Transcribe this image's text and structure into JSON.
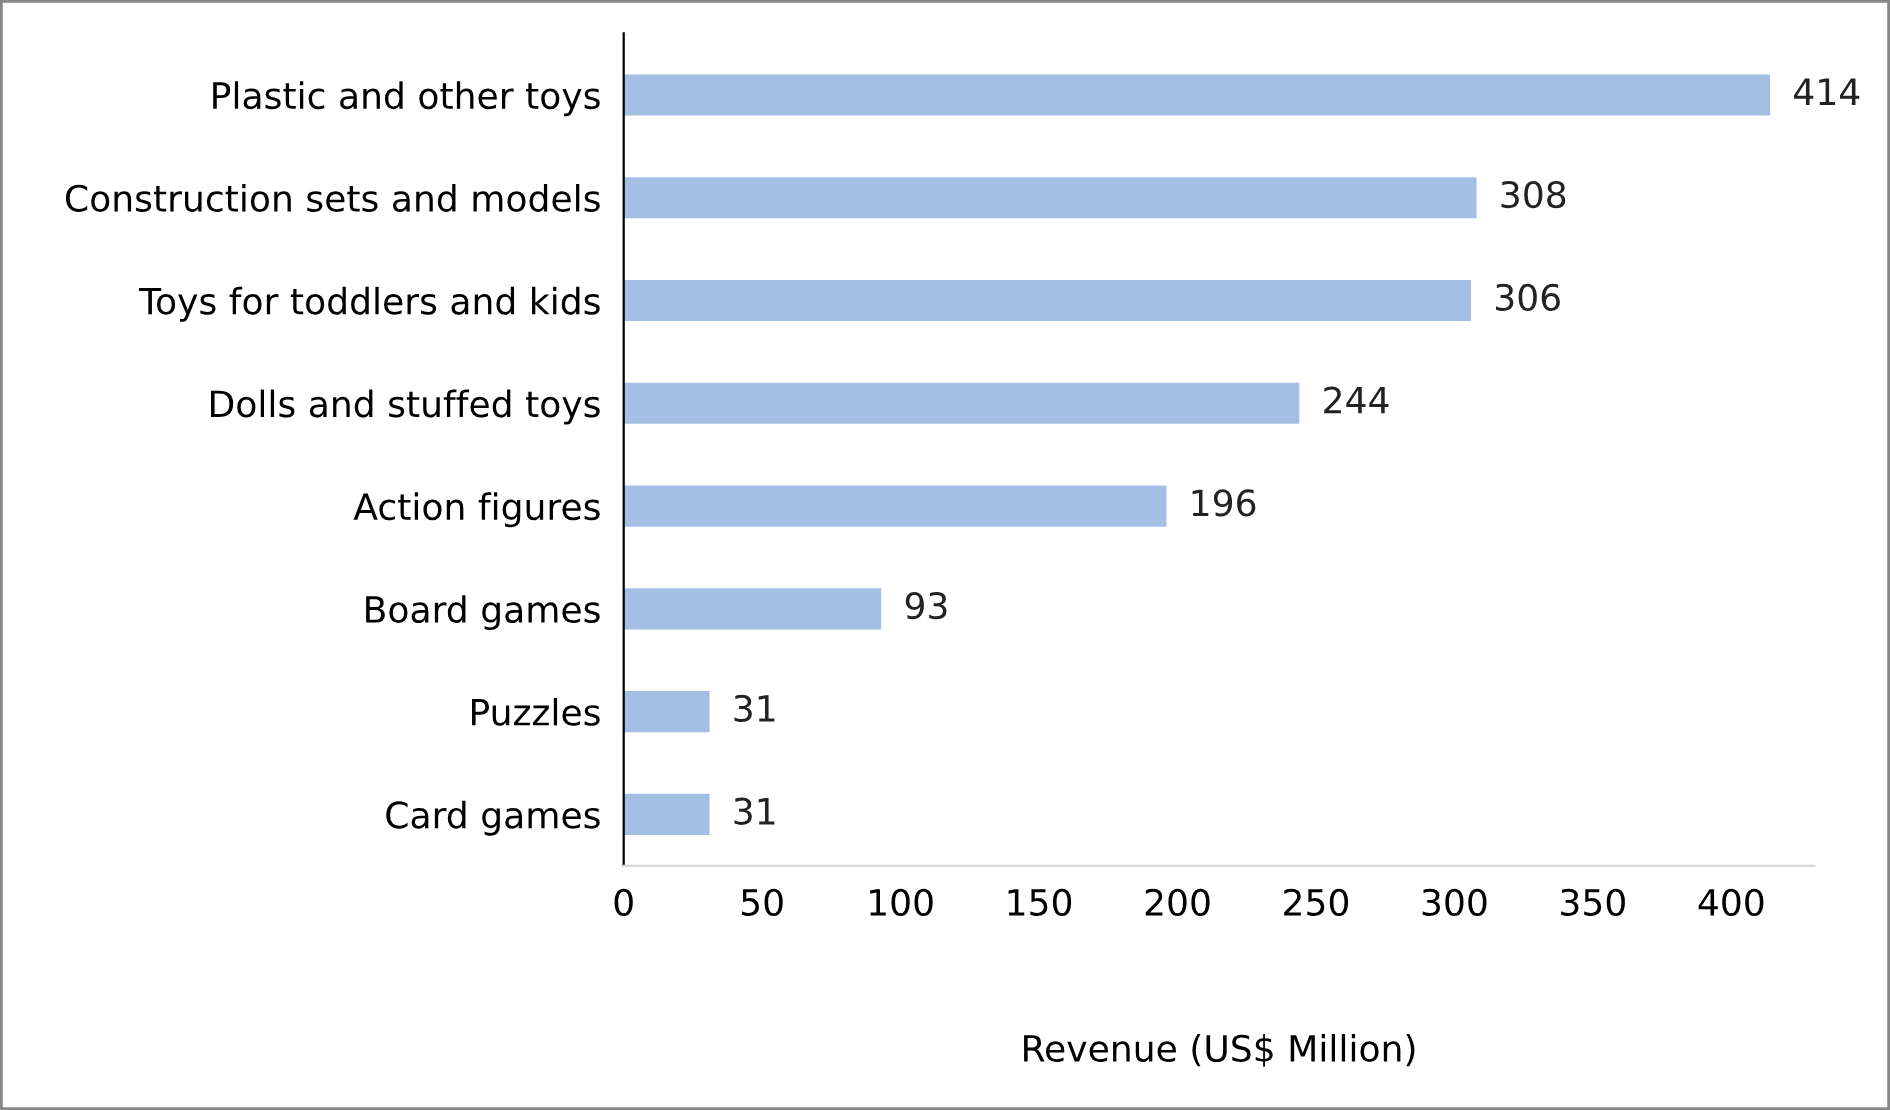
{
  "chart_data": {
    "type": "bar",
    "orientation": "horizontal",
    "xlabel": "Revenue (US$ Million)",
    "categories": [
      "Plastic and other toys",
      "Construction sets and models",
      "Toys for toddlers and kids",
      "Dolls and stuffed toys",
      "Action figures",
      "Board games",
      "Puzzles",
      "Card games"
    ],
    "values": [
      414,
      308,
      306,
      244,
      196,
      93,
      31,
      31
    ],
    "color": "#a3bfe3",
    "xlim": [
      0,
      430
    ],
    "xticks": [
      0,
      50,
      100,
      150,
      200,
      250,
      300,
      350,
      400
    ],
    "data_labels": true,
    "grid": false,
    "legend": false
  }
}
